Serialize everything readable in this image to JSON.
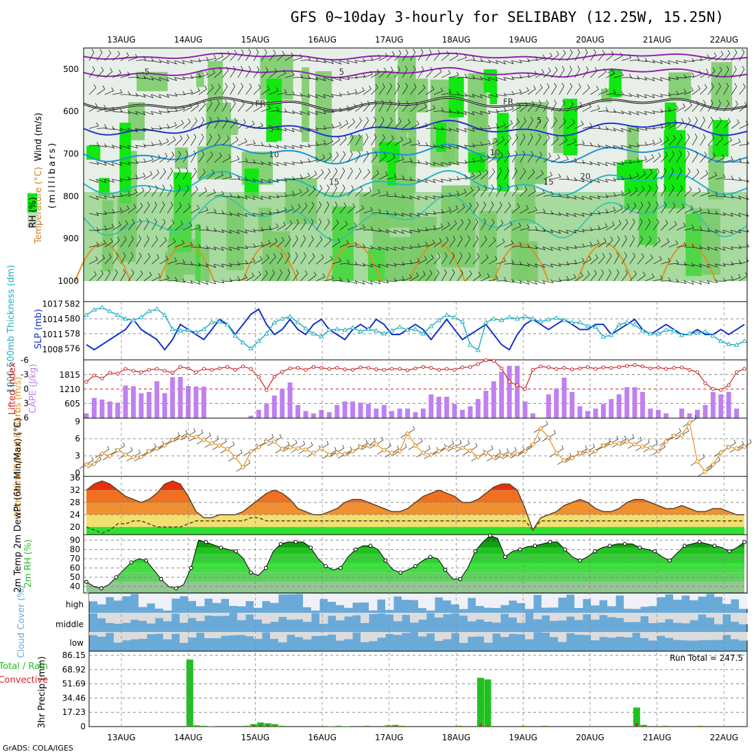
{
  "title": "GFS 0~10day 3-hourly for SELIBABY (12.25W, 15.25N)",
  "credit": "GrADS: COLA/IGES",
  "colors": {
    "rh_light": "#c8d8c8",
    "rh_mid": "#7ccc6c",
    "rh_bright": "#10e810",
    "temp_contour": "#2030d0",
    "slp": "#1030c8",
    "thickness": "#20b0c0",
    "cape": "#c080f0",
    "lifted": "#d02020",
    "wind10": "#e09020",
    "t_hot": "#e83010",
    "t_warm": "#f09030",
    "t_mild": "#f0e070",
    "dewpt": "#30e030",
    "rh2m": "#20c020",
    "cloud": "#6aaad8",
    "cloud_gap": "#f0f0f8",
    "rain": "#20c020",
    "convective": "#e02020"
  },
  "chart_data": [
    {
      "panel": "upper-air",
      "type": "heatmap",
      "ylabel_parts": {
        "wind": "Wind (m/s)",
        "temp": "Temperature (°C)",
        "rh": "RH (%)",
        "units": "(millibars)"
      },
      "y_ticks": [
        500,
        600,
        700,
        800,
        900,
        1000
      ],
      "x_ticks": [
        "13AUG",
        "14AUG",
        "15AUG",
        "16AUG",
        "17AUG",
        "18AUG",
        "19AUG",
        "20AUG",
        "21AUG",
        "22AUG"
      ],
      "contour_labels": [
        {
          "label": "-5",
          "x_day": 0.3,
          "p": 505
        },
        {
          "label": "5",
          "x_day": 3.25,
          "p": 505
        },
        {
          "label": "-5",
          "x_day": 7.25,
          "p": 505
        },
        {
          "label": "FR",
          "x_day": 2.0,
          "p": 580
        },
        {
          "label": "FR",
          "x_day": 5.7,
          "p": 575
        },
        {
          "label": "5",
          "x_day": 2.2,
          "p": 640
        },
        {
          "label": "5",
          "x_day": 6.2,
          "p": 620
        },
        {
          "label": "10",
          "x_day": 2.2,
          "p": 700
        },
        {
          "label": "10",
          "x_day": 5.5,
          "p": 695
        },
        {
          "label": "15",
          "x_day": 3.1,
          "p": 765
        },
        {
          "label": "15",
          "x_day": 6.3,
          "p": 765
        },
        {
          "label": "20",
          "x_day": 6.85,
          "p": 752
        }
      ]
    },
    {
      "panel": "slp-thickness",
      "type": "line",
      "ylabel_left": "1000-500mb Thickness (dm)",
      "ylabel_right": "SLP (mb)",
      "left_ticks": [
        576,
        578,
        580,
        582
      ],
      "right_ticks": [
        1008,
        1011,
        1014,
        1017
      ],
      "series": [
        {
          "name": "SLP",
          "values": [
            1009,
            1008,
            1009,
            1010,
            1011,
            1012,
            1014,
            1012,
            1011,
            1010,
            1008,
            1010,
            1013,
            1012,
            1011,
            1010,
            1012,
            1014,
            1013,
            1011,
            1013,
            1015,
            1016,
            1013,
            1011,
            1012,
            1014,
            1012,
            1011,
            1013,
            1014,
            1012,
            1011,
            1010,
            1012,
            1013,
            1012,
            1014,
            1013,
            1011,
            1011,
            1012,
            1013,
            1012,
            1010,
            1012,
            1014,
            1012,
            1010,
            1011,
            1012,
            1013,
            1011,
            1009,
            1008,
            1011,
            1013,
            1014,
            1013,
            1012,
            1013,
            1014,
            1013,
            1012,
            1012,
            1013,
            1013,
            1011,
            1012,
            1013,
            1014,
            1012,
            1011,
            1012,
            1013,
            1012,
            1011,
            1011,
            1012,
            1011,
            1011,
            1012,
            1011,
            1012,
            1013
          ]
        },
        {
          "name": "Thickness",
          "values": [
            580.5,
            581.2,
            581.5,
            581.0,
            580.5,
            580.0,
            579.8,
            580.2,
            581.0,
            581.3,
            580.5,
            578.6,
            578.4,
            578.5,
            578.2,
            578.6,
            579.5,
            579.6,
            579.2,
            577.7,
            576.8,
            576.0,
            577.0,
            578.0,
            579.5,
            580.0,
            580.3,
            579.5,
            578.7,
            578.0,
            577.6,
            578.5,
            578.6,
            578.5,
            578.8,
            578.3,
            578.6,
            578.4,
            578.0,
            578.4,
            578.9,
            578.5,
            578.6,
            578.0,
            579.0,
            579.8,
            580.5,
            580.2,
            579.6,
            576.5,
            575.8,
            579.5,
            580.0,
            579.8,
            580.2,
            580.0,
            580.3,
            580.0,
            579.6,
            579.9,
            580.1,
            579.8,
            579.5,
            579.5,
            579.0,
            578.9,
            577.6,
            577.8,
            579.2,
            579.5,
            579.2,
            578.4,
            578.0,
            578.0,
            578.5,
            578.4,
            577.8,
            578.0,
            578.1,
            578.3,
            577.7,
            577.0,
            576.6,
            576.5,
            577.0
          ]
        }
      ]
    },
    {
      "panel": "cape-lifted",
      "type": "bar",
      "ylabel_left": "Lifted Index",
      "ylabel_right": "CAPE (J/kg)",
      "li_ticks": [
        -6,
        -3,
        0,
        3,
        6
      ],
      "cape_ticks": [
        605,
        1210,
        1815
      ],
      "series": [
        {
          "name": "CAPE",
          "values": [
            200,
            850,
            780,
            700,
            650,
            1370,
            1340,
            1050,
            1100,
            1550,
            1050,
            1720,
            1730,
            1350,
            1330,
            1320,
            0,
            0,
            0,
            0,
            0,
            100,
            350,
            600,
            950,
            1230,
            1500,
            550,
            300,
            200,
            350,
            250,
            550,
            700,
            700,
            650,
            600,
            400,
            550,
            300,
            400,
            400,
            250,
            400,
            1000,
            900,
            900,
            600,
            350,
            500,
            800,
            1150,
            1550,
            1950,
            2200,
            2200,
            700,
            200,
            0,
            1000,
            1250,
            1700,
            1100,
            500,
            300,
            400,
            600,
            800,
            1000,
            1300,
            1300,
            1100,
            400,
            350,
            200,
            0,
            400,
            200,
            350,
            550,
            1100,
            1000,
            1100,
            400
          ]
        },
        {
          "name": "Lifted Index",
          "values": [
            -1.5,
            -2.8,
            -2.2,
            -3.4,
            -3.2,
            -4.2,
            -3.8,
            -3.5,
            -4.0,
            -4.2,
            -3.8,
            -3.4,
            -4.6,
            -4.3,
            -3.5,
            -4.2,
            -4.0,
            -4.3,
            -4.6,
            -4.0,
            -4.7,
            -4.2,
            -2.5,
            0.2,
            -2.6,
            -3.6,
            -4.3,
            -4.4,
            -4.0,
            -4.6,
            -4.4,
            -4.2,
            -4.4,
            -4.1,
            -4.0,
            -4.5,
            -4.4,
            -4.1,
            -4.0,
            -4.2,
            -4.2,
            -3.9,
            -4.3,
            -4.6,
            -4.4,
            -4.0,
            -4.2,
            -4.0,
            -4.5,
            -4.6,
            -5.2,
            -6.0,
            -5.9,
            -4.3,
            -1.5,
            -0.8,
            0.0,
            -4.0,
            -4.7,
            -4.5,
            -4.2,
            -4.4,
            -4.1,
            -4.3,
            -4.6,
            -4.2,
            -4.5,
            -4.4,
            -4.6,
            -4.8,
            -5.0,
            -4.7,
            -4.3,
            -4.5,
            -4.2,
            -4.4,
            -4.5,
            -4.0,
            -3.5,
            -1.2,
            0.0,
            0.2,
            -0.8,
            -3.5,
            -4.2
          ]
        }
      ]
    },
    {
      "panel": "wind10",
      "type": "line",
      "ylabel": "10m Wind Speed & Barbs (m/s)",
      "y_ticks": [
        0,
        3,
        6,
        9
      ],
      "series": [
        {
          "name": "10m Wind Speed",
          "values": [
            1.5,
            1.6,
            3.4,
            3.0,
            4.0,
            3.2,
            2.8,
            2.8,
            3.8,
            4.3,
            4.8,
            5.8,
            6.2,
            6.5,
            6.3,
            5.8,
            5.2,
            4.8,
            4.2,
            2.8,
            1.0,
            3.8,
            4.5,
            5.5,
            5.5,
            4.2,
            4.5,
            4.3,
            4.1,
            3.5,
            4.3,
            3.2,
            3.6,
            3.3,
            3.8,
            4.5,
            4.8,
            5.0,
            4.0,
            3.5,
            3.8,
            6.9,
            4.8,
            3.5,
            3.2,
            3.8,
            4.4,
            4.5,
            4.4,
            3.9,
            2.8,
            3.5,
            2.8,
            3.0,
            3.2,
            3.3,
            3.8,
            5.0,
            7.8,
            6.2,
            3.5,
            2.2,
            2.6,
            3.5,
            3.8,
            3.8,
            4.8,
            5.2,
            5.2,
            5.5,
            5.0,
            4.6,
            4.4,
            3.8,
            5.5,
            6.5,
            6.6,
            8.8,
            2.0,
            0.2,
            1.5,
            3.6,
            4.5,
            4.3,
            4.6
          ]
        }
      ]
    },
    {
      "panel": "temp2m",
      "type": "area",
      "ylabel": "2m Temp 2m DewPt (6hr Min/Max) (°C)",
      "y_ticks": [
        20,
        24,
        28,
        32,
        36
      ],
      "series": [
        {
          "name": "2m Temp",
          "values": [
            32,
            34,
            35,
            34,
            32,
            30,
            29,
            28,
            29,
            31,
            34,
            35,
            34,
            30,
            25,
            23,
            23,
            24,
            24,
            24,
            25,
            27,
            29,
            31,
            32,
            31,
            29,
            26,
            25,
            24,
            24,
            25,
            26,
            28,
            29,
            29,
            28,
            27,
            26,
            25,
            25,
            26,
            28,
            30,
            31,
            32,
            31,
            30,
            28,
            28,
            29,
            31,
            33,
            34,
            34,
            32,
            26,
            19,
            23,
            24,
            25,
            27,
            28,
            29,
            28,
            26,
            25,
            25,
            26,
            28,
            29,
            29,
            28,
            27,
            26,
            26,
            27,
            26,
            25,
            25,
            26,
            26,
            25,
            24,
            24
          ]
        },
        {
          "name": "2m DewPt",
          "values": [
            20,
            19,
            18,
            19,
            21,
            21,
            22,
            22,
            21,
            20,
            20,
            20,
            20,
            21,
            22,
            22,
            22,
            22,
            22,
            22,
            22,
            23,
            23,
            22,
            22,
            22,
            22,
            22,
            22,
            22,
            22,
            22,
            22,
            22,
            22,
            22,
            22,
            22,
            22,
            22,
            22,
            22,
            22,
            22,
            22,
            22,
            22,
            22,
            22,
            22,
            22,
            22,
            22,
            22,
            22,
            22,
            22,
            19,
            22,
            22,
            22,
            22,
            22,
            22,
            22,
            22,
            22,
            22,
            22,
            22,
            22,
            22,
            22,
            22,
            22,
            22,
            22,
            22,
            22,
            22,
            22,
            22,
            22,
            22,
            22
          ]
        }
      ]
    },
    {
      "panel": "rh2m",
      "type": "area",
      "ylabel": "2m RH (%)",
      "y_ticks": [
        40,
        50,
        60,
        70,
        80,
        90
      ],
      "series": [
        {
          "name": "2m RH",
          "values": [
            45,
            40,
            38,
            42,
            50,
            58,
            66,
            70,
            68,
            58,
            48,
            40,
            38,
            42,
            60,
            90,
            88,
            85,
            82,
            80,
            78,
            70,
            55,
            52,
            60,
            78,
            86,
            88,
            88,
            88,
            82,
            70,
            62,
            58,
            60,
            72,
            80,
            84,
            84,
            80,
            68,
            58,
            55,
            58,
            62,
            68,
            72,
            70,
            58,
            48,
            48,
            60,
            78,
            88,
            95,
            92,
            72,
            78,
            80,
            83,
            84,
            86,
            88,
            88,
            80,
            72,
            68,
            72,
            78,
            82,
            84,
            86,
            86,
            86,
            82,
            80,
            78,
            72,
            68,
            76,
            84,
            86,
            88,
            86,
            84,
            82,
            78,
            82,
            88
          ]
        }
      ]
    },
    {
      "panel": "cloud",
      "type": "heatmap",
      "ylabel": "Cloud Cover (%)",
      "rows": [
        "high",
        "middle",
        "low"
      ]
    },
    {
      "panel": "precip",
      "type": "bar",
      "ylabel_left": "Total / Rain Convective",
      "ylabel_right": "3hr Precip (mm)",
      "y_ticks": [
        0,
        17.23,
        34.46,
        51.69,
        68.92,
        86.15
      ],
      "annotation": "Run Total = 247.5",
      "x_ticks": [
        "13AUG",
        "14AUG",
        "15AUG",
        "16AUG",
        "17AUG",
        "18AUG",
        "19AUG",
        "20AUG",
        "21AUG",
        "22AUG"
      ],
      "series": [
        {
          "name": "Total",
          "values": [
            0,
            0,
            0,
            0,
            0,
            0,
            0,
            0,
            0,
            0,
            0,
            0,
            0,
            0,
            81,
            1.5,
            1,
            0.5,
            0,
            0,
            0,
            0,
            1,
            3,
            5,
            4,
            3,
            1,
            0,
            0,
            0,
            0,
            0,
            0,
            0.5,
            1,
            0.5,
            0,
            0,
            1,
            0,
            0,
            1.5,
            2,
            1,
            0,
            0,
            0,
            0,
            0,
            0,
            0,
            1,
            0,
            0,
            59,
            57,
            0,
            0,
            0,
            0,
            1,
            0,
            0,
            1,
            0,
            0,
            0,
            0,
            0,
            0,
            0,
            0,
            0,
            0,
            0,
            0,
            23,
            2,
            0,
            0,
            1,
            0,
            0,
            0,
            0,
            1,
            0,
            0,
            0,
            0,
            0,
            0
          ]
        },
        {
          "name": "Convective",
          "values": [
            0,
            0,
            0,
            0,
            0,
            0,
            0,
            0,
            0,
            0,
            0,
            0,
            0,
            0,
            0.5,
            0.3,
            0.3,
            0.2,
            0,
            0,
            0,
            0,
            0.5,
            1.5,
            2,
            2,
            1,
            0.5,
            0,
            0,
            0,
            0,
            0,
            0,
            0.2,
            0.3,
            0.2,
            0,
            0,
            0.5,
            0,
            0,
            1,
            1,
            0.5,
            0,
            0,
            0,
            0,
            0,
            0,
            0,
            0.5,
            0,
            0,
            3,
            1,
            0,
            0,
            0,
            0,
            0.5,
            0,
            0,
            0.5,
            0,
            0,
            0,
            0,
            0,
            0,
            0,
            0,
            0,
            0,
            0,
            0,
            4,
            1,
            0,
            0,
            0.5,
            0,
            0,
            0,
            0,
            0.5,
            0,
            0,
            0,
            0,
            0,
            0
          ]
        }
      ]
    }
  ]
}
